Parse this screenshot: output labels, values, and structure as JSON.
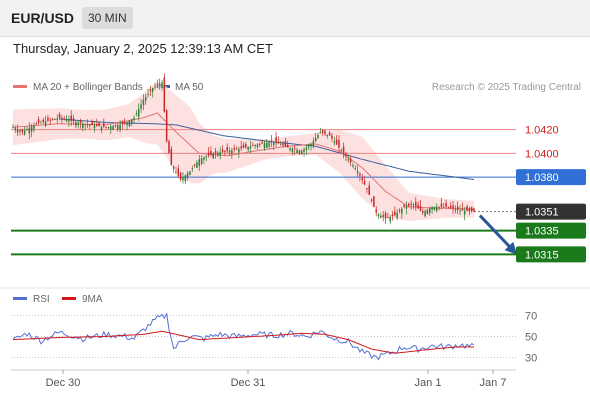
{
  "header": {
    "symbol": "EUR/USD",
    "timeframe": "30 MIN"
  },
  "timestamp": "Thursday, January 2, 2025 12:39:13 AM CET",
  "legend": {
    "ma20": "MA 20 + Bollinger Bands",
    "ma50": "MA 50",
    "credit": "Research © 2025 Trading Central"
  },
  "colors": {
    "bull": "#2e7d32",
    "bear": "#c62828",
    "ma20": "#e57373",
    "ma50": "#3a5fa0",
    "band": "#fdd9d9",
    "support": "#1b7a1b",
    "resist": "#f08080",
    "pivot": "#2f6fd6",
    "arrow": "#2b5797",
    "rsi": "#5470d6",
    "rsi_ma": "#d01818"
  },
  "chart_data": [
    {
      "type": "candlestick",
      "ylim": [
        1.029,
        1.045
      ],
      "levels": [
        {
          "label": "1.0420",
          "value": 1.042,
          "kind": "resistance"
        },
        {
          "label": "1.0400",
          "value": 1.04,
          "kind": "resistance"
        },
        {
          "label": "1.0380",
          "value": 1.038,
          "kind": "pivot"
        },
        {
          "label": "1.0351",
          "value": 1.0351,
          "kind": "last"
        },
        {
          "label": "1.0335",
          "value": 1.0335,
          "kind": "support"
        },
        {
          "label": "1.0315",
          "value": 1.0315,
          "kind": "support"
        }
      ],
      "x_ticks": [
        "Dec 30",
        "Dec 31",
        "Jan 1",
        "Jan 7"
      ],
      "close_anchors": [
        [
          0,
          1.0422
        ],
        [
          4,
          1.0418
        ],
        [
          10,
          1.0425
        ],
        [
          20,
          1.043
        ],
        [
          30,
          1.0425
        ],
        [
          40,
          1.0422
        ],
        [
          48,
          1.0425
        ],
        [
          52,
          1.043
        ],
        [
          56,
          1.0445
        ],
        [
          60,
          1.0455
        ],
        [
          64,
          1.046
        ],
        [
          66,
          1.041
        ],
        [
          68,
          1.039
        ],
        [
          72,
          1.0378
        ],
        [
          76,
          1.0385
        ],
        [
          80,
          1.0395
        ],
        [
          86,
          1.04
        ],
        [
          92,
          1.0402
        ],
        [
          100,
          1.0405
        ],
        [
          106,
          1.0408
        ],
        [
          112,
          1.041
        ],
        [
          118,
          1.0405
        ],
        [
          124,
          1.0402
        ],
        [
          128,
          1.0408
        ],
        [
          132,
          1.0418
        ],
        [
          136,
          1.0415
        ],
        [
          140,
          1.0405
        ],
        [
          144,
          1.0395
        ],
        [
          148,
          1.0385
        ],
        [
          152,
          1.037
        ],
        [
          156,
          1.035
        ],
        [
          160,
          1.0345
        ],
        [
          164,
          1.0348
        ],
        [
          168,
          1.0355
        ],
        [
          172,
          1.0357
        ],
        [
          176,
          1.035
        ],
        [
          180,
          1.0355
        ],
        [
          186,
          1.0355
        ],
        [
          192,
          1.0352
        ],
        [
          198,
          1.0351
        ]
      ],
      "ma20_anchors": [
        [
          0,
          1.0422
        ],
        [
          20,
          1.0425
        ],
        [
          40,
          1.0424
        ],
        [
          56,
          1.043
        ],
        [
          62,
          1.0434
        ],
        [
          70,
          1.0418
        ],
        [
          80,
          1.04
        ],
        [
          92,
          1.0398
        ],
        [
          104,
          1.0402
        ],
        [
          118,
          1.0406
        ],
        [
          130,
          1.0408
        ],
        [
          140,
          1.0402
        ],
        [
          150,
          1.0388
        ],
        [
          160,
          1.0368
        ],
        [
          170,
          1.0355
        ],
        [
          180,
          1.0354
        ],
        [
          198,
          1.0353
        ]
      ],
      "ma50_anchors": [
        [
          20,
          1.0429
        ],
        [
          40,
          1.0426
        ],
        [
          60,
          1.0425
        ],
        [
          70,
          1.0424
        ],
        [
          90,
          1.0415
        ],
        [
          110,
          1.041
        ],
        [
          130,
          1.0406
        ],
        [
          150,
          1.0395
        ],
        [
          170,
          1.0385
        ],
        [
          198,
          1.0378
        ]
      ],
      "band_width_anchors": [
        [
          0,
          0.0015
        ],
        [
          30,
          0.0012
        ],
        [
          50,
          0.0014
        ],
        [
          60,
          0.0025
        ],
        [
          66,
          0.003
        ],
        [
          76,
          0.0032
        ],
        [
          86,
          0.0016
        ],
        [
          110,
          0.0008
        ],
        [
          130,
          0.0009
        ],
        [
          140,
          0.0018
        ],
        [
          150,
          0.0026
        ],
        [
          160,
          0.0022
        ],
        [
          170,
          0.0012
        ],
        [
          185,
          0.0008
        ],
        [
          198,
          0.0007
        ]
      ]
    },
    {
      "type": "line",
      "series": [
        {
          "name": "RSI"
        },
        {
          "name": "9MA"
        }
      ],
      "ylim": [
        20,
        78
      ],
      "y_ticks": [
        70,
        50,
        30
      ],
      "rsi_anchors": [
        [
          0,
          46
        ],
        [
          6,
          53
        ],
        [
          12,
          46
        ],
        [
          20,
          54
        ],
        [
          30,
          48
        ],
        [
          40,
          52
        ],
        [
          48,
          50
        ],
        [
          52,
          48
        ],
        [
          58,
          60
        ],
        [
          62,
          67
        ],
        [
          66,
          70
        ],
        [
          69,
          38
        ],
        [
          72,
          45
        ],
        [
          76,
          50
        ],
        [
          82,
          48
        ],
        [
          88,
          52
        ],
        [
          96,
          50
        ],
        [
          104,
          52
        ],
        [
          112,
          51
        ],
        [
          120,
          53
        ],
        [
          126,
          50
        ],
        [
          132,
          55
        ],
        [
          138,
          48
        ],
        [
          144,
          45
        ],
        [
          150,
          35
        ],
        [
          156,
          30
        ],
        [
          162,
          34
        ],
        [
          168,
          40
        ],
        [
          174,
          38
        ],
        [
          180,
          41
        ],
        [
          186,
          40
        ],
        [
          192,
          42
        ],
        [
          198,
          40
        ]
      ],
      "ma_anchors": [
        [
          0,
          47
        ],
        [
          20,
          49
        ],
        [
          40,
          50
        ],
        [
          56,
          52
        ],
        [
          64,
          55
        ],
        [
          70,
          52
        ],
        [
          80,
          47
        ],
        [
          96,
          49
        ],
        [
          112,
          51
        ],
        [
          124,
          53
        ],
        [
          134,
          52
        ],
        [
          144,
          47
        ],
        [
          154,
          38
        ],
        [
          164,
          34
        ],
        [
          176,
          37
        ],
        [
          190,
          40
        ],
        [
          198,
          40
        ]
      ]
    }
  ]
}
